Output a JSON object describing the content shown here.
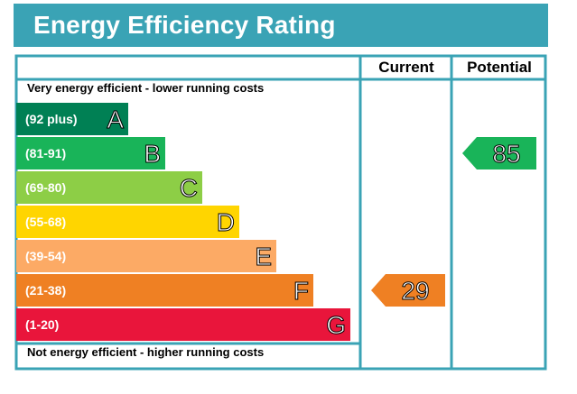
{
  "header": {
    "title": "Energy Efficiency Rating"
  },
  "columns": {
    "current": "Current",
    "potential": "Potential"
  },
  "notes": {
    "top": "Very energy efficient - lower running costs",
    "bottom": "Not energy efficient - higher running costs"
  },
  "chart_data": {
    "type": "bar",
    "title": "Energy Efficiency Rating",
    "categories": [
      "A",
      "B",
      "C",
      "D",
      "E",
      "F",
      "G"
    ],
    "bands": [
      {
        "letter": "A",
        "range": "(92 plus)",
        "color": "#008054"
      },
      {
        "letter": "B",
        "range": "(81-91)",
        "color": "#19b459"
      },
      {
        "letter": "C",
        "range": "(69-80)",
        "color": "#8dce46"
      },
      {
        "letter": "D",
        "range": "(55-68)",
        "color": "#ffd500"
      },
      {
        "letter": "E",
        "range": "(39-54)",
        "color": "#fcaa65"
      },
      {
        "letter": "F",
        "range": "(21-38)",
        "color": "#ef8023"
      },
      {
        "letter": "G",
        "range": "(1-20)",
        "color": "#e9153b"
      }
    ],
    "current": {
      "value": 29,
      "band": "F",
      "color": "#ef8023"
    },
    "potential": {
      "value": 85,
      "band": "B",
      "color": "#19b459"
    }
  }
}
